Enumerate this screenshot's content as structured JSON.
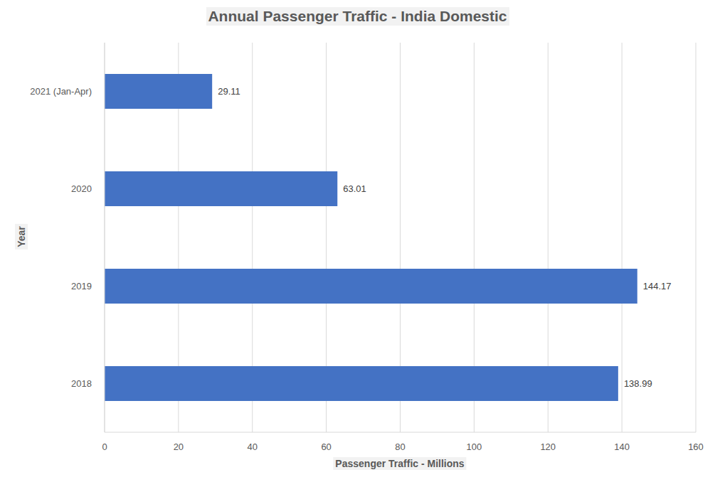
{
  "chart_data": {
    "type": "bar",
    "title": "Annual Passenger Traffic - India Domestic",
    "x_label": "Passenger Traffic - Millions",
    "y_label": "Year",
    "orientation": "horizontal",
    "categories": [
      "2021 (Jan-Apr)",
      "2020",
      "2019",
      "2018"
    ],
    "values": [
      29.11,
      63.01,
      144.17,
      138.99
    ],
    "color": "#4472c4",
    "xlim": [
      0,
      160
    ],
    "xticks": [
      0,
      20,
      40,
      60,
      80,
      100,
      120,
      140,
      160
    ],
    "grid": true,
    "data_labels": true
  }
}
